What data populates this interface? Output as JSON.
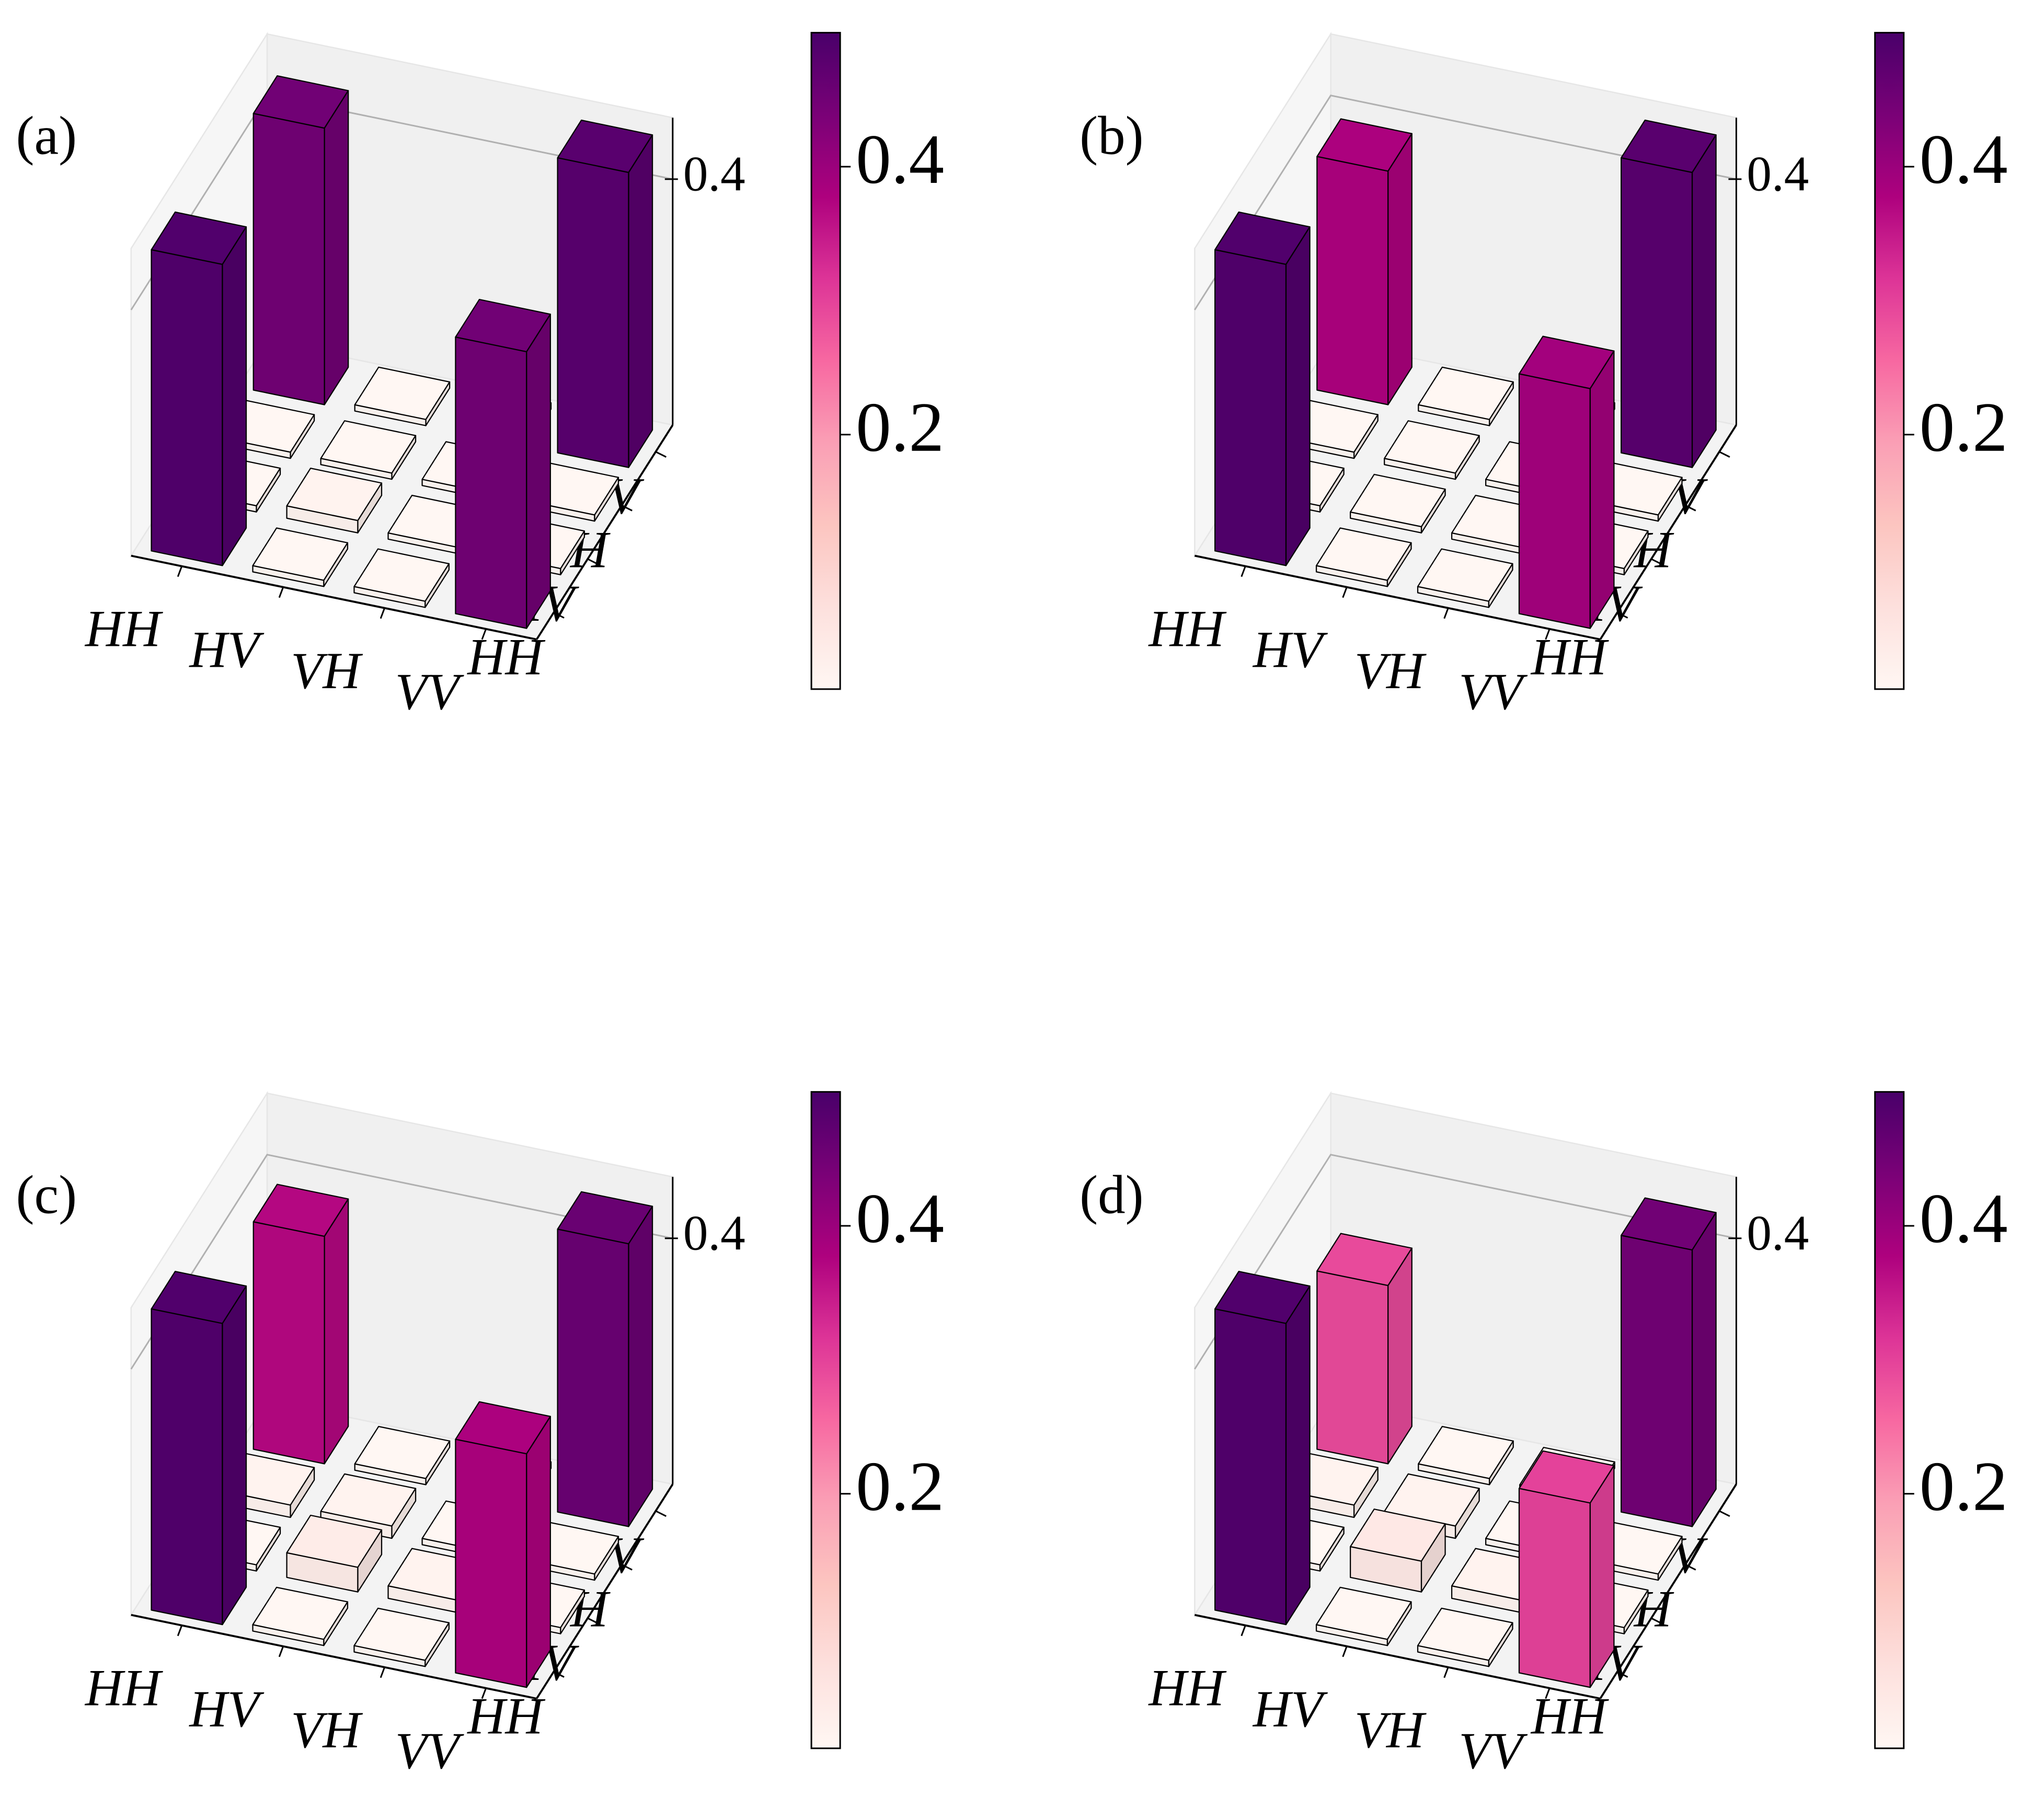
{
  "chart_data": [
    {
      "type": "bar3d",
      "label": "(a)",
      "x_categories": [
        "HH",
        "HV",
        "VH",
        "VV"
      ],
      "y_categories": [
        "HH",
        "HV",
        "VH",
        "VV"
      ],
      "values": [
        [
          0.49,
          0.01,
          0.01,
          0.45
        ],
        [
          0.01,
          0.02,
          0.01,
          0.01
        ],
        [
          0.01,
          0.01,
          0.01,
          0.01
        ],
        [
          0.45,
          0.01,
          0.01,
          0.48
        ]
      ],
      "zlim": [
        0,
        0.5
      ],
      "zticks": [
        0.4
      ],
      "clim": [
        0.01,
        0.5
      ],
      "cbticks": [
        0.2,
        0.4
      ],
      "grid": true,
      "colormap": [
        "#fff7f3",
        "#fde0dd",
        "#fcc5c0",
        "#fa9fb5",
        "#f768a1",
        "#dd3497",
        "#ae017e",
        "#7a0177",
        "#49006a"
      ]
    },
    {
      "type": "bar3d",
      "label": "(b)",
      "x_categories": [
        "HH",
        "HV",
        "VH",
        "VV"
      ],
      "y_categories": [
        "HH",
        "HV",
        "VH",
        "VV"
      ],
      "values": [
        [
          0.49,
          0.01,
          0.01,
          0.39
        ],
        [
          0.01,
          0.01,
          0.01,
          0.01
        ],
        [
          0.01,
          0.01,
          0.01,
          0.01
        ],
        [
          0.38,
          0.01,
          0.01,
          0.48
        ]
      ],
      "zlim": [
        0,
        0.5
      ],
      "zticks": [
        0.4
      ],
      "clim": [
        0.01,
        0.5
      ],
      "cbticks": [
        0.2,
        0.4
      ],
      "grid": true,
      "colormap": [
        "#fff7f3",
        "#fde0dd",
        "#fcc5c0",
        "#fa9fb5",
        "#f768a1",
        "#dd3497",
        "#ae017e",
        "#7a0177",
        "#49006a"
      ]
    },
    {
      "type": "bar3d",
      "label": "(c)",
      "x_categories": [
        "HH",
        "HV",
        "VH",
        "VV"
      ],
      "y_categories": [
        "HH",
        "HV",
        "VH",
        "VV"
      ],
      "values": [
        [
          0.49,
          0.01,
          0.01,
          0.38
        ],
        [
          0.01,
          0.04,
          0.02,
          0.01
        ],
        [
          0.02,
          0.02,
          0.01,
          0.01
        ],
        [
          0.37,
          0.01,
          0.01,
          0.46
        ]
      ],
      "zlim": [
        0,
        0.5
      ],
      "zticks": [
        0.4
      ],
      "clim": [
        0.01,
        0.5
      ],
      "cbticks": [
        0.2,
        0.4
      ],
      "grid": true,
      "colormap": [
        "#fff7f3",
        "#fde0dd",
        "#fcc5c0",
        "#fa9fb5",
        "#f768a1",
        "#dd3497",
        "#ae017e",
        "#7a0177",
        "#49006a"
      ]
    },
    {
      "type": "bar3d",
      "label": "(d)",
      "x_categories": [
        "HH",
        "HV",
        "VH",
        "VV"
      ],
      "y_categories": [
        "HH",
        "HV",
        "VH",
        "VV"
      ],
      "values": [
        [
          0.49,
          0.01,
          0.01,
          0.3
        ],
        [
          0.01,
          0.05,
          0.02,
          0.01
        ],
        [
          0.02,
          0.02,
          0.01,
          0.01
        ],
        [
          0.29,
          0.01,
          0.01,
          0.45
        ]
      ],
      "zlim": [
        0,
        0.5
      ],
      "zticks": [
        0.4
      ],
      "clim": [
        0.01,
        0.5
      ],
      "cbticks": [
        0.2,
        0.4
      ],
      "grid": true,
      "colormap": [
        "#fff7f3",
        "#fde0dd",
        "#fcc5c0",
        "#fa9fb5",
        "#f768a1",
        "#dd3497",
        "#ae017e",
        "#7a0177",
        "#49006a"
      ]
    }
  ]
}
